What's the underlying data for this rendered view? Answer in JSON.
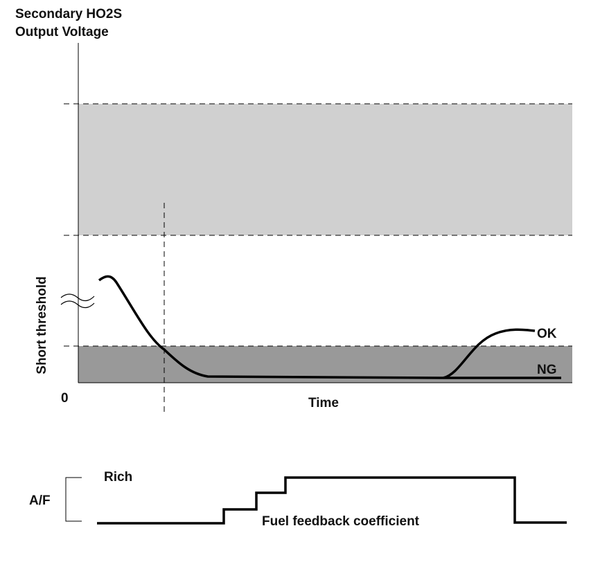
{
  "header": {
    "title_lines": [
      "Secondary HO2S",
      "Output Voltage"
    ]
  },
  "labels": {
    "y_axis": "Short threshold",
    "origin": "0",
    "x_axis": "Time",
    "ok": "OK",
    "ng": "NG"
  },
  "lower": {
    "rich": "Rich",
    "af": "A/F",
    "coefficient": "Fuel feedback coefficient"
  }
}
